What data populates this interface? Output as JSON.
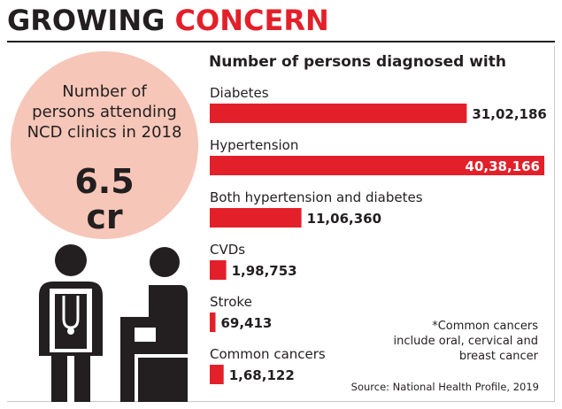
{
  "header": {
    "title_word1": "GROWING",
    "title_word2": "CONCERN"
  },
  "callout": {
    "text_lines": [
      "Number of",
      "persons attending",
      "NCD clinics in 2018"
    ],
    "value_line1": "6.5",
    "value_line2": "cr"
  },
  "chart_data": {
    "type": "bar",
    "title": "Number of persons diagnosed with",
    "categories": [
      "Diabetes",
      "Hypertension",
      "Both hypertension and diabetes",
      "CVDs",
      "Stroke",
      "Common cancers"
    ],
    "values": [
      3102186,
      4038166,
      1106360,
      198753,
      69413,
      168122
    ],
    "value_labels": [
      "31,02,186",
      "40,38,166",
      "11,06,360",
      "1,98,753",
      "69,413",
      "1,68,122"
    ],
    "bar_color": "#e3202a",
    "xlim": [
      0,
      4038166
    ]
  },
  "footnote": "*Common cancers include oral, cervical and breast cancer",
  "source": "Source: National Health Profile, 2019",
  "colors": {
    "accent": "#e3202a",
    "circle": "#f6c6b8",
    "text": "#231f20"
  }
}
